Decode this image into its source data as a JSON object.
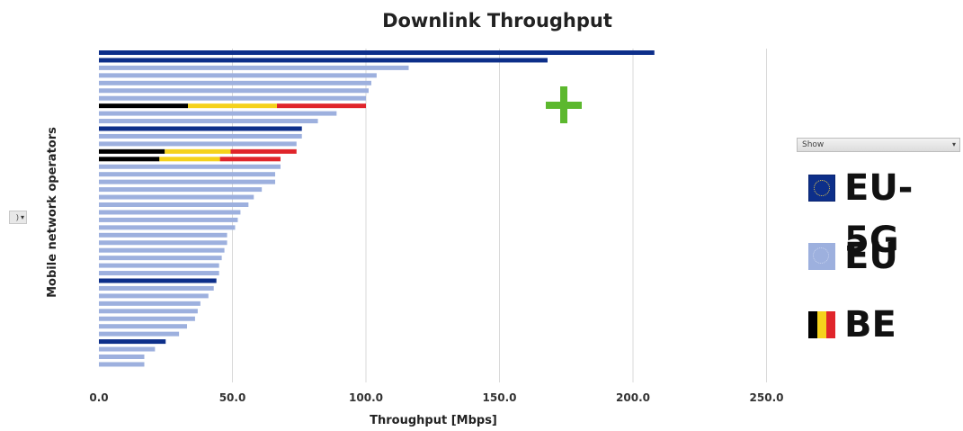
{
  "chart_data": {
    "type": "bar",
    "orientation": "horizontal",
    "title": "Downlink Throughput",
    "xlabel": "Throughput [Mbps]",
    "ylabel": "Mobile network operators",
    "xlim": [
      0,
      250
    ],
    "xticks": [
      "0.0",
      "50.0",
      "100.0",
      "150.0",
      "200.0",
      "250.0"
    ],
    "grid": true,
    "legend_position": "right",
    "legend": [
      {
        "key": "eu5g",
        "label": "EU-5G"
      },
      {
        "key": "eu",
        "label": "EU"
      },
      {
        "key": "be",
        "label": "BE"
      }
    ],
    "colors": {
      "eu5g": "#0d2f8a",
      "eu": "#9db0de",
      "be": [
        "#000000",
        "#f5d21c",
        "#e0252b"
      ],
      "grid": "#d9d9d9",
      "plus": "#5cb82e"
    },
    "bars": [
      {
        "value": 208,
        "group": "eu5g"
      },
      {
        "value": 168,
        "group": "eu5g"
      },
      {
        "value": 116,
        "group": "eu"
      },
      {
        "value": 104,
        "group": "eu"
      },
      {
        "value": 102,
        "group": "eu"
      },
      {
        "value": 101,
        "group": "eu"
      },
      {
        "value": 100,
        "group": "eu"
      },
      {
        "value": 100,
        "group": "be"
      },
      {
        "value": 89,
        "group": "eu"
      },
      {
        "value": 82,
        "group": "eu"
      },
      {
        "value": 76,
        "group": "eu5g"
      },
      {
        "value": 76,
        "group": "eu"
      },
      {
        "value": 74,
        "group": "eu"
      },
      {
        "value": 74,
        "group": "be"
      },
      {
        "value": 68,
        "group": "be"
      },
      {
        "value": 68,
        "group": "eu"
      },
      {
        "value": 66,
        "group": "eu"
      },
      {
        "value": 66,
        "group": "eu"
      },
      {
        "value": 61,
        "group": "eu"
      },
      {
        "value": 58,
        "group": "eu"
      },
      {
        "value": 56,
        "group": "eu"
      },
      {
        "value": 53,
        "group": "eu"
      },
      {
        "value": 52,
        "group": "eu"
      },
      {
        "value": 51,
        "group": "eu"
      },
      {
        "value": 48,
        "group": "eu"
      },
      {
        "value": 48,
        "group": "eu"
      },
      {
        "value": 47,
        "group": "eu"
      },
      {
        "value": 46,
        "group": "eu"
      },
      {
        "value": 45,
        "group": "eu"
      },
      {
        "value": 45,
        "group": "eu"
      },
      {
        "value": 44,
        "group": "eu5g"
      },
      {
        "value": 43,
        "group": "eu"
      },
      {
        "value": 41,
        "group": "eu"
      },
      {
        "value": 38,
        "group": "eu"
      },
      {
        "value": 37,
        "group": "eu"
      },
      {
        "value": 36,
        "group": "eu"
      },
      {
        "value": 33,
        "group": "eu"
      },
      {
        "value": 30,
        "group": "eu"
      },
      {
        "value": 25,
        "group": "eu5g"
      },
      {
        "value": 21,
        "group": "eu"
      },
      {
        "value": 17,
        "group": "eu"
      },
      {
        "value": 17,
        "group": "eu"
      }
    ]
  },
  "controls": {
    "show_dropdown": "Show",
    "mini_dropdown": ") ▾",
    "dropdown_arrow": "▾"
  }
}
